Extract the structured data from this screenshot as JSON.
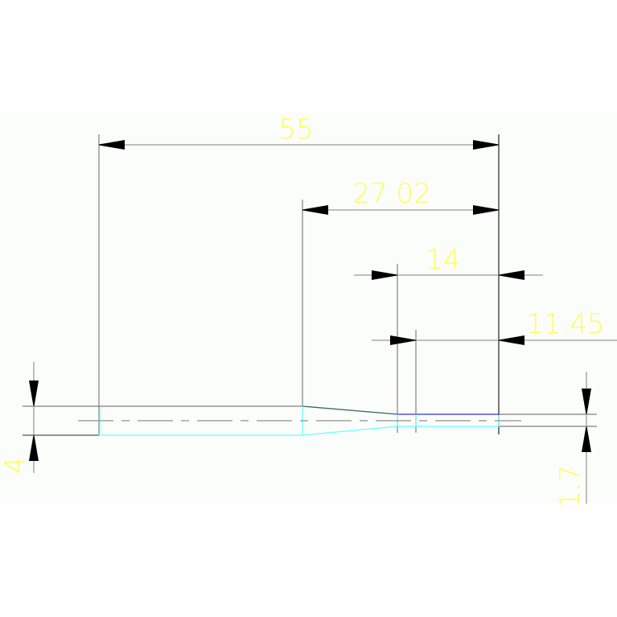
{
  "drawing": {
    "dimensions": {
      "overall_length": "55",
      "taper_to_end": "27.02",
      "small_section": "14",
      "small_section_inner": "11.45",
      "large_diameter": "4",
      "small_diameter": "1.7"
    },
    "colors": {
      "background": "#fbfdfb",
      "dimension_text": "#ffff55",
      "dimension_line": "#808080",
      "outline_cyan": "#66ffff",
      "outline_blue": "#3333cc",
      "taper_edge": "#336666"
    }
  }
}
